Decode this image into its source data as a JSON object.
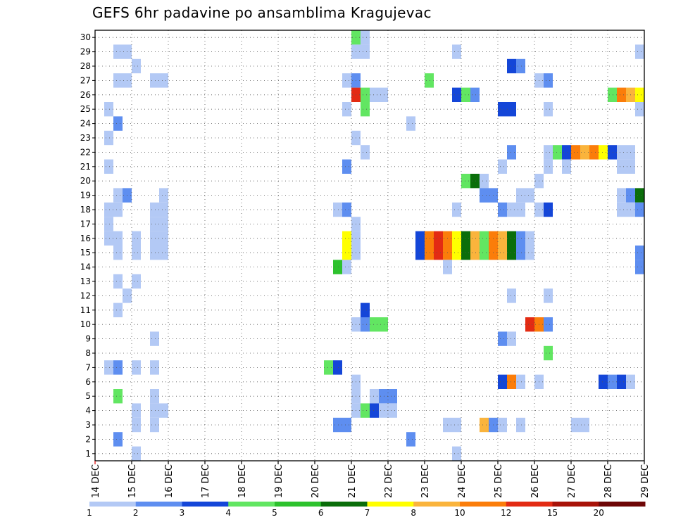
{
  "chart_data": {
    "type": "heatmap",
    "title": "GEFS 6hr padavine po ansamblima Kragujevac",
    "xlabel": "",
    "ylabel": "",
    "x_tick_labels": [
      "14 DEC",
      "15 DEC",
      "16 DEC",
      "17 DEC",
      "18 DEC",
      "19 DEC",
      "20 DEC",
      "21 DEC",
      "22 DEC",
      "23 DEC",
      "24 DEC",
      "25 DEC",
      "26 DEC",
      "27 DEC",
      "28 DEC",
      "29 DEC"
    ],
    "y_tick_labels": [
      "1",
      "2",
      "3",
      "4",
      "5",
      "6",
      "7",
      "8",
      "9",
      "10",
      "11",
      "12",
      "13",
      "14",
      "15",
      "16",
      "17",
      "18",
      "19",
      "20",
      "21",
      "22",
      "23",
      "24",
      "25",
      "26",
      "27",
      "28",
      "29",
      "30"
    ],
    "x_range_days": [
      0,
      15
    ],
    "y_range_members": [
      1,
      30
    ],
    "time_step_days": 0.25,
    "grid": "dotted",
    "colorbar": {
      "labels": [
        "1",
        "2",
        "3",
        "4",
        "5",
        "6",
        "7",
        "8",
        "10",
        "12",
        "15",
        "20"
      ],
      "colors": [
        "#b3c9f5",
        "#5e8ef0",
        "#1446d8",
        "#62e662",
        "#2dc22d",
        "#0a6e0a",
        "#ffff00",
        "#fab43c",
        "#fb7d0a",
        "#e32b13",
        "#a81208",
        "#6e0606"
      ]
    },
    "cells": [
      [
        30,
        7.0,
        4
      ],
      [
        30,
        7.25,
        1
      ],
      [
        29,
        0.5,
        1
      ],
      [
        29,
        0.75,
        1
      ],
      [
        29,
        7.0,
        1
      ],
      [
        29,
        7.25,
        1
      ],
      [
        29,
        9.75,
        1
      ],
      [
        29,
        14.75,
        1
      ],
      [
        29,
        15.0,
        8
      ],
      [
        28,
        1.0,
        1
      ],
      [
        28,
        11.25,
        3
      ],
      [
        28,
        11.5,
        2
      ],
      [
        27,
        0.5,
        1
      ],
      [
        27,
        0.75,
        1
      ],
      [
        27,
        1.5,
        1
      ],
      [
        27,
        1.75,
        1
      ],
      [
        27,
        6.75,
        1
      ],
      [
        27,
        7.0,
        2
      ],
      [
        27,
        9.0,
        4
      ],
      [
        27,
        12.0,
        1
      ],
      [
        27,
        12.25,
        2
      ],
      [
        26,
        7.0,
        10
      ],
      [
        26,
        7.25,
        4
      ],
      [
        26,
        7.5,
        1
      ],
      [
        26,
        7.75,
        1
      ],
      [
        26,
        9.75,
        3
      ],
      [
        26,
        10.0,
        4
      ],
      [
        26,
        10.25,
        2
      ],
      [
        26,
        14.0,
        4
      ],
      [
        26,
        14.25,
        9
      ],
      [
        26,
        14.5,
        8
      ],
      [
        26,
        14.75,
        7
      ],
      [
        26,
        15.0,
        1
      ],
      [
        25,
        0.25,
        1
      ],
      [
        25,
        6.75,
        1
      ],
      [
        25,
        7.25,
        4
      ],
      [
        25,
        11.0,
        3
      ],
      [
        25,
        11.25,
        3
      ],
      [
        25,
        12.25,
        1
      ],
      [
        25,
        14.75,
        1
      ],
      [
        24,
        0.5,
        2
      ],
      [
        24,
        8.5,
        1
      ],
      [
        23,
        0.25,
        1
      ],
      [
        23,
        7.0,
        1
      ],
      [
        22,
        7.25,
        1
      ],
      [
        22,
        11.25,
        2
      ],
      [
        22,
        12.25,
        1
      ],
      [
        22,
        12.5,
        4
      ],
      [
        22,
        12.75,
        3
      ],
      [
        22,
        13.0,
        9
      ],
      [
        22,
        13.25,
        8
      ],
      [
        22,
        13.5,
        9
      ],
      [
        22,
        13.75,
        7
      ],
      [
        22,
        14.0,
        3
      ],
      [
        22,
        14.25,
        1
      ],
      [
        22,
        14.5,
        1
      ],
      [
        21,
        0.25,
        1
      ],
      [
        21,
        6.75,
        2
      ],
      [
        21,
        11.0,
        1
      ],
      [
        21,
        12.25,
        1
      ],
      [
        21,
        12.75,
        1
      ],
      [
        21,
        14.25,
        1
      ],
      [
        21,
        14.5,
        1
      ],
      [
        20,
        10.0,
        4
      ],
      [
        20,
        10.25,
        6
      ],
      [
        20,
        10.5,
        1
      ],
      [
        20,
        12.0,
        1
      ],
      [
        19,
        0.5,
        1
      ],
      [
        19,
        0.75,
        2
      ],
      [
        19,
        1.75,
        1
      ],
      [
        19,
        10.5,
        2
      ],
      [
        19,
        10.75,
        2
      ],
      [
        19,
        11.5,
        1
      ],
      [
        19,
        11.75,
        1
      ],
      [
        19,
        14.25,
        1
      ],
      [
        19,
        14.5,
        2
      ],
      [
        19,
        14.75,
        6
      ],
      [
        19,
        15.0,
        4
      ],
      [
        18,
        0.25,
        1
      ],
      [
        18,
        0.5,
        1
      ],
      [
        18,
        1.5,
        1
      ],
      [
        18,
        1.75,
        1
      ],
      [
        18,
        6.5,
        1
      ],
      [
        18,
        6.75,
        2
      ],
      [
        18,
        9.75,
        1
      ],
      [
        18,
        11.0,
        2
      ],
      [
        18,
        11.25,
        1
      ],
      [
        18,
        11.5,
        1
      ],
      [
        18,
        12.0,
        1
      ],
      [
        18,
        12.25,
        3
      ],
      [
        18,
        14.25,
        1
      ],
      [
        18,
        14.5,
        1
      ],
      [
        18,
        14.75,
        2
      ],
      [
        17,
        0.25,
        1
      ],
      [
        17,
        1.5,
        1
      ],
      [
        17,
        1.75,
        1
      ],
      [
        17,
        7.0,
        1
      ],
      [
        16,
        0.25,
        1
      ],
      [
        16,
        7.0,
        1
      ],
      [
        16,
        6.75,
        7
      ],
      [
        15,
        6.75,
        7
      ],
      [
        15,
        7.0,
        1
      ],
      [
        16,
        0.5,
        1
      ],
      [
        15,
        0.5,
        1
      ],
      [
        16,
        1.0,
        1
      ],
      [
        15,
        1.0,
        1
      ],
      [
        16,
        1.5,
        1
      ],
      [
        15,
        1.5,
        1
      ],
      [
        16,
        1.75,
        1
      ],
      [
        15,
        1.75,
        1
      ],
      [
        16,
        8.75,
        3
      ],
      [
        15,
        8.75,
        3
      ],
      [
        16,
        9.0,
        9
      ],
      [
        15,
        9.0,
        9
      ],
      [
        16,
        9.25,
        10
      ],
      [
        15,
        9.25,
        10
      ],
      [
        16,
        9.5,
        9
      ],
      [
        15,
        9.5,
        9
      ],
      [
        16,
        9.75,
        7
      ],
      [
        15,
        9.75,
        7
      ],
      [
        16,
        10.0,
        6
      ],
      [
        15,
        10.0,
        6
      ],
      [
        16,
        10.25,
        8
      ],
      [
        15,
        10.25,
        8
      ],
      [
        16,
        10.5,
        4
      ],
      [
        15,
        10.5,
        4
      ],
      [
        16,
        10.75,
        9
      ],
      [
        15,
        10.75,
        9
      ],
      [
        16,
        11.0,
        8
      ],
      [
        15,
        11.0,
        8
      ],
      [
        16,
        11.25,
        6
      ],
      [
        15,
        11.25,
        6
      ],
      [
        16,
        11.5,
        2
      ],
      [
        15,
        11.5,
        2
      ],
      [
        16,
        11.75,
        1
      ],
      [
        15,
        11.75,
        1
      ],
      [
        15,
        14.75,
        2
      ],
      [
        14,
        6.5,
        5
      ],
      [
        14,
        6.75,
        1
      ],
      [
        14,
        9.5,
        1
      ],
      [
        14,
        14.75,
        2
      ],
      [
        13,
        0.5,
        1
      ],
      [
        13,
        1.0,
        1
      ],
      [
        12,
        0.75,
        1
      ],
      [
        12,
        11.25,
        1
      ],
      [
        12,
        12.25,
        1
      ],
      [
        11,
        0.5,
        1
      ],
      [
        11,
        7.25,
        3
      ],
      [
        10,
        7.0,
        1
      ],
      [
        10,
        7.25,
        2
      ],
      [
        10,
        7.5,
        4
      ],
      [
        10,
        7.75,
        4
      ],
      [
        10,
        11.75,
        10
      ],
      [
        10,
        12.0,
        9
      ],
      [
        10,
        12.25,
        2
      ],
      [
        9,
        1.5,
        1
      ],
      [
        9,
        11.0,
        2
      ],
      [
        9,
        11.25,
        1
      ],
      [
        8,
        12.25,
        4
      ],
      [
        7,
        0.25,
        1
      ],
      [
        7,
        0.5,
        2
      ],
      [
        7,
        1.0,
        1
      ],
      [
        7,
        1.5,
        1
      ],
      [
        7,
        6.25,
        4
      ],
      [
        7,
        6.5,
        3
      ],
      [
        6,
        7.0,
        1
      ],
      [
        6,
        11.0,
        3
      ],
      [
        6,
        11.25,
        9
      ],
      [
        6,
        11.5,
        1
      ],
      [
        6,
        12.0,
        1
      ],
      [
        6,
        13.75,
        3
      ],
      [
        6,
        14.0,
        2
      ],
      [
        6,
        14.25,
        3
      ],
      [
        6,
        14.5,
        1
      ],
      [
        5,
        0.5,
        4
      ],
      [
        5,
        1.5,
        1
      ],
      [
        5,
        7.0,
        1
      ],
      [
        5,
        7.5,
        1
      ],
      [
        5,
        7.75,
        2
      ],
      [
        5,
        8.0,
        2
      ],
      [
        4,
        1.0,
        1
      ],
      [
        4,
        1.5,
        1
      ],
      [
        4,
        1.75,
        1
      ],
      [
        4,
        7.0,
        1
      ],
      [
        4,
        7.25,
        4
      ],
      [
        4,
        7.5,
        3
      ],
      [
        4,
        7.75,
        1
      ],
      [
        4,
        8.0,
        1
      ],
      [
        3,
        1.0,
        1
      ],
      [
        3,
        1.5,
        1
      ],
      [
        3,
        6.5,
        2
      ],
      [
        3,
        6.75,
        2
      ],
      [
        3,
        9.5,
        1
      ],
      [
        3,
        9.75,
        1
      ],
      [
        3,
        10.5,
        8
      ],
      [
        3,
        10.75,
        2
      ],
      [
        3,
        11.0,
        1
      ],
      [
        3,
        11.5,
        1
      ],
      [
        3,
        13.0,
        1
      ],
      [
        3,
        13.25,
        1
      ],
      [
        3,
        15.0,
        2
      ],
      [
        2,
        0.5,
        2
      ],
      [
        2,
        8.5,
        2
      ],
      [
        1,
        1.0,
        1
      ],
      [
        1,
        9.75,
        1
      ],
      [
        0,
        0.75,
        1
      ],
      [
        0,
        1.75,
        1
      ]
    ]
  }
}
